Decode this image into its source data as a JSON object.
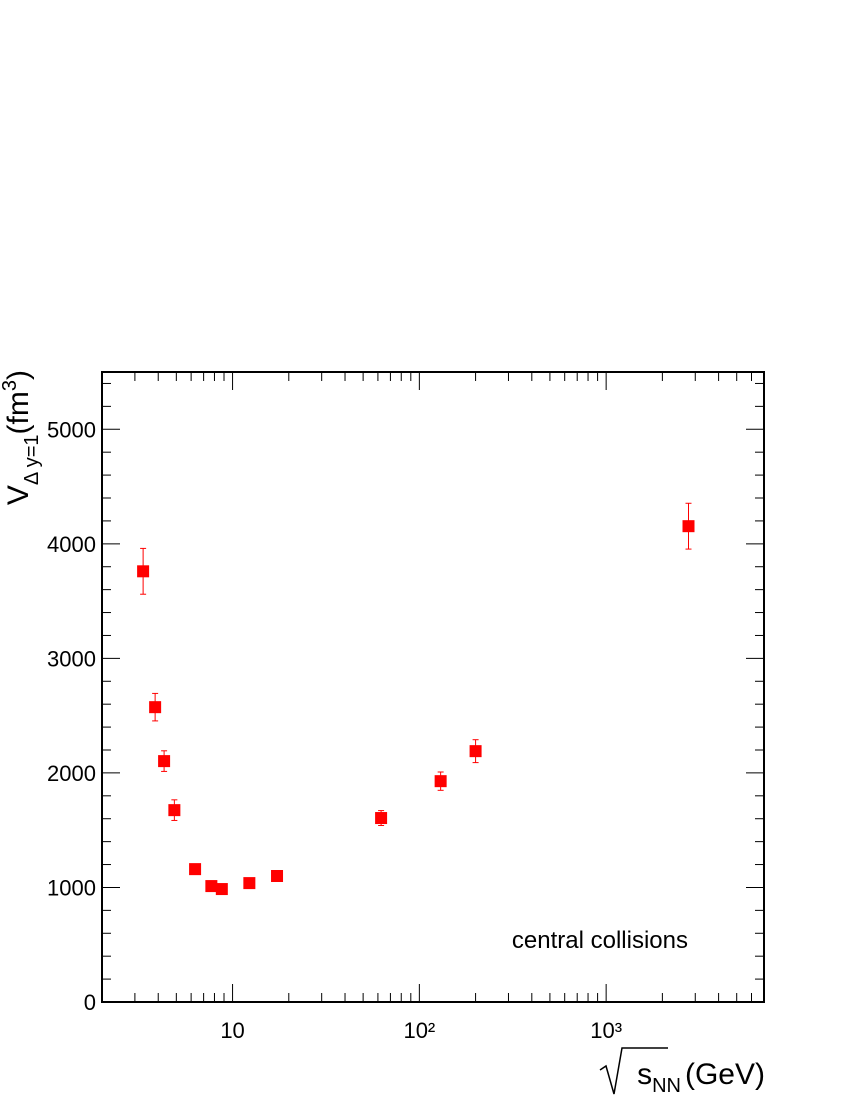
{
  "chart_data": {
    "type": "scatter",
    "x_label": {
      "prefix": "s",
      "subscript": "NN",
      "unit": "(GeV)"
    },
    "y_label": {
      "symbol": "V",
      "subscript": "Δ y=1",
      "unit": "(fm",
      "superscript": "3",
      "close": ")"
    },
    "annotation": "central collisions",
    "log_x": true,
    "xlim": [
      2,
      7000
    ],
    "xticks": [
      10,
      {
        "value": 100,
        "label": "10²"
      },
      {
        "value": 1000,
        "label": "10³"
      }
    ],
    "xminorticks": [
      3,
      4,
      5,
      6,
      7,
      8,
      9,
      20,
      30,
      40,
      50,
      60,
      70,
      80,
      90,
      200,
      300,
      400,
      500,
      600,
      700,
      800,
      900,
      2000,
      3000,
      4000,
      5000,
      6000
    ],
    "ylim": [
      0,
      5500
    ],
    "yticks": [
      0,
      1000,
      2000,
      3000,
      4000,
      5000
    ],
    "yminorticks": [
      200,
      400,
      600,
      800,
      1200,
      1400,
      1600,
      1800,
      2200,
      2400,
      2600,
      2800,
      3200,
      3400,
      3600,
      3800,
      4200,
      4400,
      4600,
      4800,
      5200,
      5400
    ],
    "series": [
      {
        "color": "#ff0000",
        "x": [
          3.32,
          3.85,
          4.3,
          4.88,
          6.3,
          7.7,
          8.76,
          12.3,
          17.3,
          62.4,
          130,
          200,
          2760
        ],
        "values": [
          3760,
          2574,
          2103,
          1675,
          1160,
          1012,
          986,
          1038,
          1100,
          1606,
          1928,
          2190,
          4154
        ],
        "errors": [
          200,
          120,
          90,
          90,
          40,
          40,
          40,
          40,
          40,
          65,
          80,
          100,
          200
        ]
      }
    ]
  }
}
